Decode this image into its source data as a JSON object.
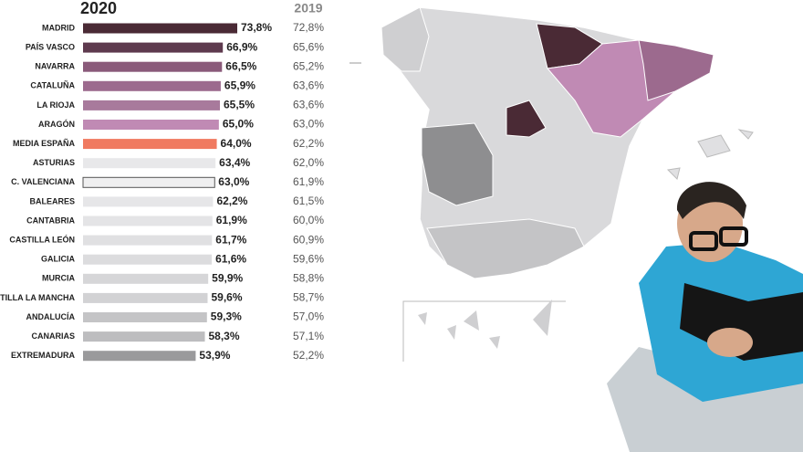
{
  "chart_data": {
    "type": "bar",
    "categories": [
      "MADRID",
      "PAÍS VASCO",
      "NAVARRA",
      "CATALUÑA",
      "LA RIOJA",
      "ARAGÓN",
      "MEDIA ESPAÑA",
      "ASTURIAS",
      "C. VALENCIANA",
      "BALEARES",
      "CANTABRIA",
      "CASTILLA LEÓN",
      "GALICIA",
      "MURCIA",
      "CASTILLA LA MANCHA",
      "ANDALUCÍA",
      "CANARIAS",
      "EXTREMADURA"
    ],
    "series": [
      {
        "name": "2020",
        "colors": [
          "#4a2a35",
          "#5e3a4e",
          "#8a5a7a",
          "#9c6a8e",
          "#a87a9c",
          "#c08ab4",
          "#f07a60",
          "#e8e8ea",
          "#efeff0",
          "#e6e6e8",
          "#e4e4e6",
          "#e0e0e2",
          "#dcdcde",
          "#d6d6d8",
          "#d2d2d4",
          "#c4c4c6",
          "#bdbdbf",
          "#9a9a9c"
        ],
        "values": [
          73.8,
          66.9,
          66.5,
          65.9,
          65.5,
          65.0,
          64.0,
          63.4,
          63.0,
          62.2,
          61.9,
          61.7,
          61.6,
          59.9,
          59.6,
          59.3,
          58.3,
          53.9
        ],
        "value_labels": [
          "73,8%",
          "66,9%",
          "66,5%",
          "65,9%",
          "65,5%",
          "65,0%",
          "64,0%",
          "63,4%",
          "63,0%",
          "62,2%",
          "61,9%",
          "61,7%",
          "61,6%",
          "59,9%",
          "59,6%",
          "59,3%",
          "58,3%",
          "53,9%"
        ]
      },
      {
        "name": "2019",
        "values": [
          72.8,
          65.6,
          65.2,
          63.6,
          63.6,
          63.0,
          62.2,
          62.0,
          61.9,
          61.5,
          60.0,
          60.9,
          59.6,
          58.8,
          58.7,
          57.0,
          57.1,
          52.2
        ],
        "value_labels": [
          "72,8%",
          "65,6%",
          "65,2%",
          "63,6%",
          "63,6%",
          "63,0%",
          "62,2%",
          "62,0%",
          "61,9%",
          "61,5%",
          "60,0%",
          "60,9%",
          "59,6%",
          "58,8%",
          "58,7%",
          "57,0%",
          "57,1%",
          "52,2%"
        ]
      }
    ]
  }
}
